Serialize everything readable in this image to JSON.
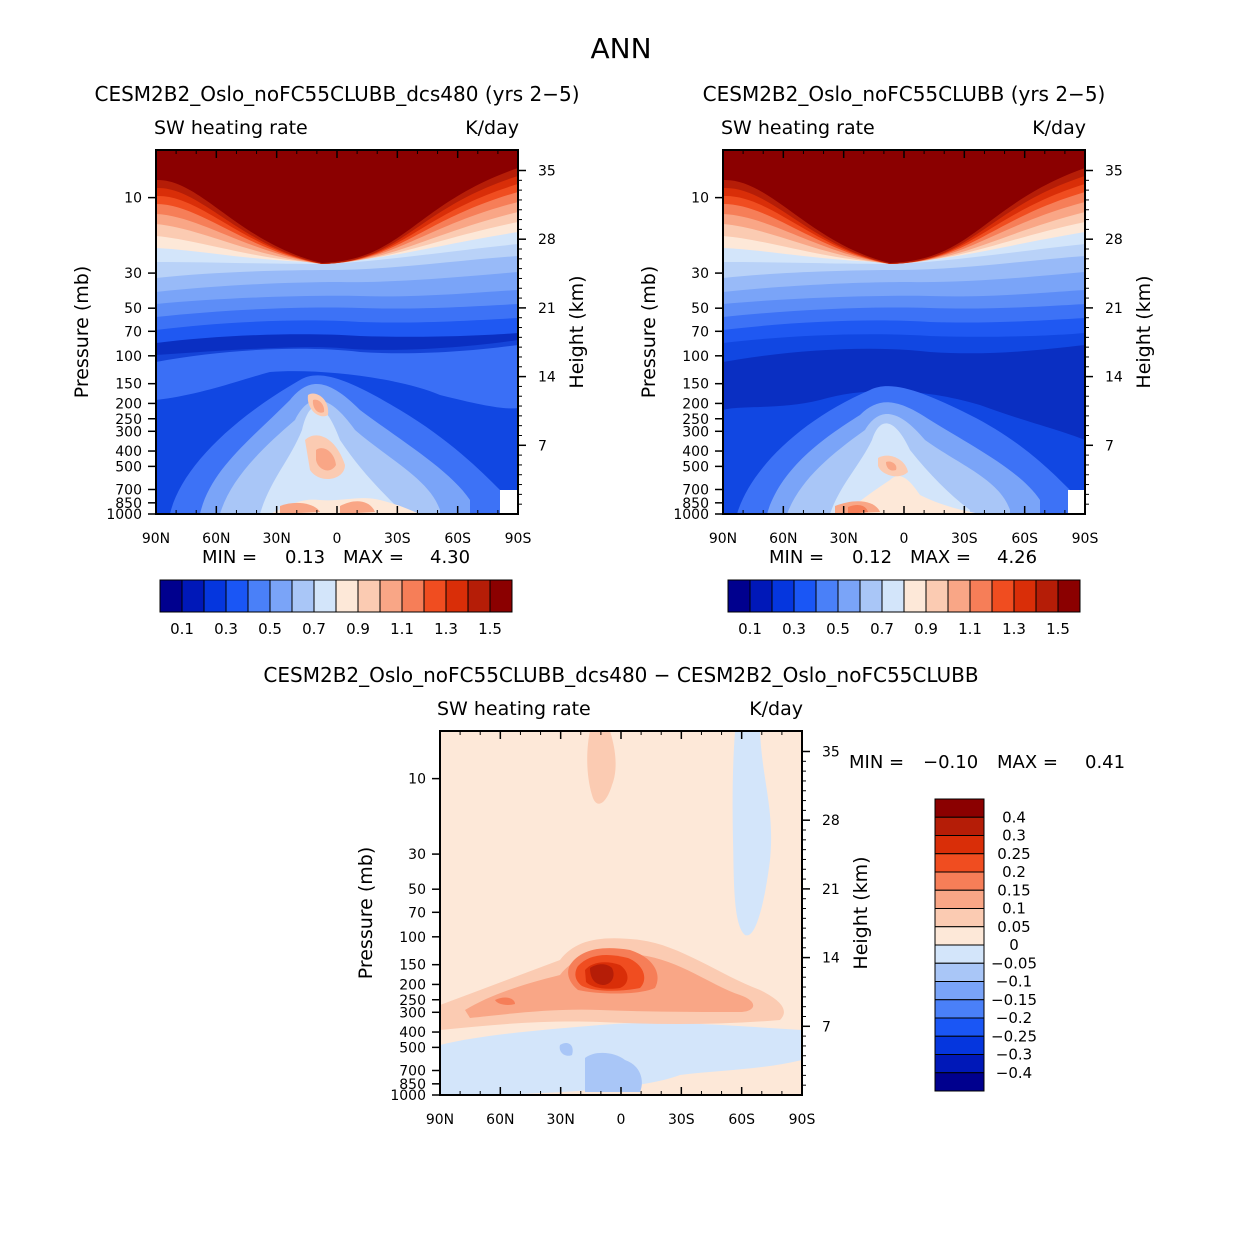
{
  "page_title": "ANN",
  "chart_data": [
    {
      "type": "heatmap",
      "id": "panel1",
      "title": "CESM2B2_Oslo_noFC55CLUBB_dcs480 (yrs 2−5)",
      "subtitle_left": "SW heating rate",
      "subtitle_right": "K/day",
      "ylabel": "Pressure (mb)",
      "y2label": "Height (km)",
      "x_ticks": [
        "90N",
        "60N",
        "30N",
        "0",
        "30S",
        "60S",
        "90S"
      ],
      "y_ticks": [
        "10",
        "30",
        "50",
        "70",
        "100",
        "150",
        "200",
        "250",
        "300",
        "400",
        "500",
        "700",
        "850",
        "1000"
      ],
      "y_tick_values": [
        10,
        30,
        50,
        70,
        100,
        150,
        200,
        250,
        300,
        400,
        500,
        700,
        850,
        1000
      ],
      "y2_ticks": [
        "35",
        "28",
        "21",
        "14",
        "7"
      ],
      "y2_tick_values": [
        35,
        28,
        21,
        14,
        7
      ],
      "ylim": [
        1000,
        5
      ],
      "min_label": "MIN =",
      "min": "0.13",
      "max_label": "MAX =",
      "max": "4.30",
      "levels": [
        0.1,
        0.2,
        0.3,
        0.4,
        0.5,
        0.6,
        0.7,
        0.8,
        0.9,
        1.0,
        1.1,
        1.2,
        1.3,
        1.4,
        1.5
      ],
      "colorbar_labels": [
        "0.1",
        "0.3",
        "0.5",
        "0.7",
        "0.9",
        "1.1",
        "1.3",
        "1.5"
      ]
    },
    {
      "type": "heatmap",
      "id": "panel2",
      "title": "CESM2B2_Oslo_noFC55CLUBB (yrs 2−5)",
      "subtitle_left": "SW heating rate",
      "subtitle_right": "K/day",
      "ylabel": "Pressure (mb)",
      "y2label": "Height (km)",
      "x_ticks": [
        "90N",
        "60N",
        "30N",
        "0",
        "30S",
        "60S",
        "90S"
      ],
      "y_ticks": [
        "10",
        "30",
        "50",
        "70",
        "100",
        "150",
        "200",
        "250",
        "300",
        "400",
        "500",
        "700",
        "850",
        "1000"
      ],
      "y_tick_values": [
        10,
        30,
        50,
        70,
        100,
        150,
        200,
        250,
        300,
        400,
        500,
        700,
        850,
        1000
      ],
      "y2_ticks": [
        "35",
        "28",
        "21",
        "14",
        "7"
      ],
      "y2_tick_values": [
        35,
        28,
        21,
        14,
        7
      ],
      "ylim": [
        1000,
        5
      ],
      "min_label": "MIN =",
      "min": "0.12",
      "max_label": "MAX =",
      "max": "4.26",
      "levels": [
        0.1,
        0.2,
        0.3,
        0.4,
        0.5,
        0.6,
        0.7,
        0.8,
        0.9,
        1.0,
        1.1,
        1.2,
        1.3,
        1.4,
        1.5
      ],
      "colorbar_labels": [
        "0.1",
        "0.3",
        "0.5",
        "0.7",
        "0.9",
        "1.1",
        "1.3",
        "1.5"
      ]
    },
    {
      "type": "heatmap",
      "id": "panel3",
      "title": "CESM2B2_Oslo_noFC55CLUBB_dcs480 − CESM2B2_Oslo_noFC55CLUBB",
      "subtitle_left": "SW heating rate",
      "subtitle_right": "K/day",
      "ylabel": "Pressure (mb)",
      "y2label": "Height (km)",
      "x_ticks": [
        "90N",
        "60N",
        "30N",
        "0",
        "30S",
        "60S",
        "90S"
      ],
      "y_ticks": [
        "10",
        "30",
        "50",
        "70",
        "100",
        "150",
        "200",
        "250",
        "300",
        "400",
        "500",
        "700",
        "850",
        "1000"
      ],
      "y_tick_values": [
        10,
        30,
        50,
        70,
        100,
        150,
        200,
        250,
        300,
        400,
        500,
        700,
        850,
        1000
      ],
      "y2_ticks": [
        "35",
        "28",
        "21",
        "14",
        "7"
      ],
      "y2_tick_values": [
        35,
        28,
        21,
        14,
        7
      ],
      "ylim": [
        1000,
        5
      ],
      "min_label": "MIN =",
      "min": "−0.10",
      "max_label": "MAX =",
      "max": "0.41",
      "levels": [
        -0.4,
        -0.3,
        -0.25,
        -0.2,
        -0.15,
        -0.1,
        -0.05,
        0,
        0.05,
        0.1,
        0.15,
        0.2,
        0.25,
        0.3,
        0.4
      ],
      "colorbar_labels": [
        "0.4",
        "0.3",
        "0.25",
        "0.2",
        "0.15",
        "0.1",
        "0.05",
        "0",
        "−0.05",
        "−0.1",
        "−0.15",
        "−0.2",
        "−0.25",
        "−0.3",
        "−0.4"
      ]
    }
  ],
  "colors": {
    "scale": [
      "#00008e",
      "#0018b8",
      "#0536de",
      "#1a56f5",
      "#4a80f8",
      "#7aa4f8",
      "#a9c6f7",
      "#d3e5fa",
      "#fde8d8",
      "#fbcbb2",
      "#f9a686",
      "#f67e58",
      "#f04d20",
      "#d92e08",
      "#b51d07",
      "#8b0000"
    ]
  }
}
